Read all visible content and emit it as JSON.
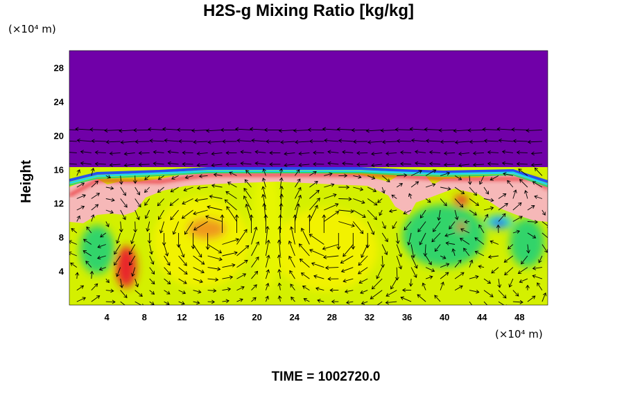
{
  "chart_data": {
    "type": "heatmap",
    "title": "H2S-g Mixing Ratio [kg/kg]",
    "ylabel": "Height",
    "x_unit": "(×10⁴ m)",
    "y_unit": "(×10⁴ m)",
    "footer": "TIME = 1002720.0",
    "xlim": [
      0,
      51
    ],
    "ylim": [
      0,
      30
    ],
    "x_ticks": [
      4,
      8,
      12,
      16,
      20,
      24,
      28,
      32,
      36,
      40,
      44,
      48
    ],
    "y_ticks": [
      4,
      8,
      12,
      16,
      20,
      24,
      28
    ],
    "colors": {
      "upper": "#7000a8",
      "background": "#d4f000",
      "yellow": "#f2f200",
      "pink": "#f6b8b8",
      "red": "#e8282a",
      "orange": "#ef8a22",
      "green": "#32d46a",
      "cyan": "#20d8e8",
      "blue": "#2850ee"
    },
    "vector_field": "velocity arrows (black) overlay"
  }
}
